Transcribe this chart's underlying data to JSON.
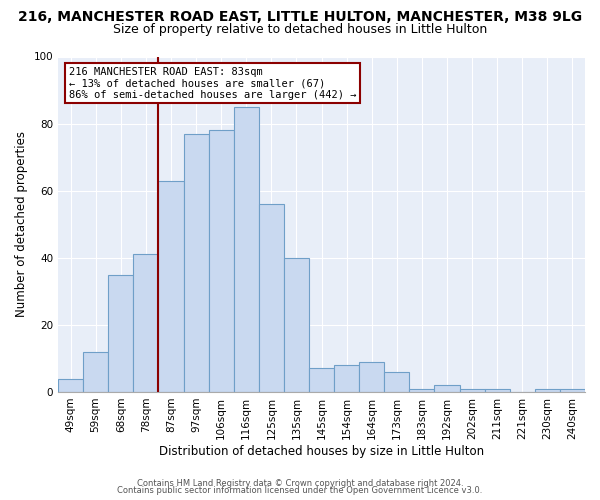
{
  "title1": "216, MANCHESTER ROAD EAST, LITTLE HULTON, MANCHESTER, M38 9LG",
  "title2": "Size of property relative to detached houses in Little Hulton",
  "xlabel": "Distribution of detached houses by size in Little Hulton",
  "ylabel": "Number of detached properties",
  "categories": [
    "49sqm",
    "59sqm",
    "68sqm",
    "78sqm",
    "87sqm",
    "97sqm",
    "106sqm",
    "116sqm",
    "125sqm",
    "135sqm",
    "145sqm",
    "154sqm",
    "164sqm",
    "173sqm",
    "183sqm",
    "192sqm",
    "202sqm",
    "211sqm",
    "221sqm",
    "230sqm",
    "240sqm"
  ],
  "values": [
    4,
    12,
    35,
    41,
    63,
    77,
    78,
    85,
    56,
    40,
    7,
    8,
    9,
    6,
    1,
    2,
    1,
    1,
    0,
    1,
    1
  ],
  "bar_color": "#c9d9f0",
  "bar_edge_color": "#6f9fc8",
  "bg_color": "#e8eef8",
  "ylim": [
    0,
    100
  ],
  "vline_x": 3.5,
  "property_label": "216 MANCHESTER ROAD EAST: 83sqm",
  "annotation_line1": "← 13% of detached houses are smaller (67)",
  "annotation_line2": "86% of semi-detached houses are larger (442) →",
  "vline_color": "#8b0000",
  "annotation_box_edge": "#8b0000",
  "footer1": "Contains HM Land Registry data © Crown copyright and database right 2024.",
  "footer2": "Contains public sector information licensed under the Open Government Licence v3.0.",
  "title1_fontsize": 10,
  "title2_fontsize": 9,
  "xlabel_fontsize": 8.5,
  "ylabel_fontsize": 8.5,
  "tick_fontsize": 7.5,
  "annotation_fontsize": 7.5,
  "footer_fontsize": 6
}
